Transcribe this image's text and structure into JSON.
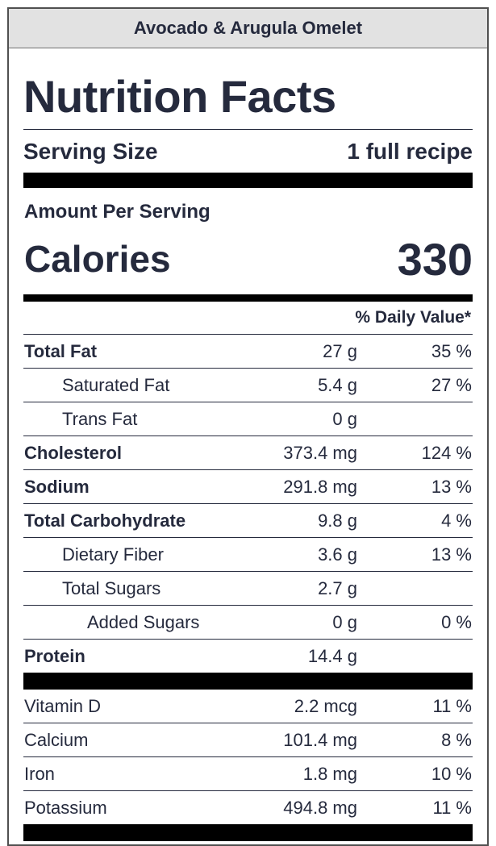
{
  "recipe_title": "Avocado & Arugula Omelet",
  "heading": "Nutrition Facts",
  "serving": {
    "label": "Serving Size",
    "value": "1 full recipe"
  },
  "amount_per_serving": "Amount Per Serving",
  "calories": {
    "label": "Calories",
    "value": "330"
  },
  "daily_value_header": "% Daily Value*",
  "nutrients": [
    {
      "name": "Total Fat",
      "amount": "27 g",
      "percent": "35 %"
    },
    {
      "name": "Saturated Fat",
      "amount": "5.4 g",
      "percent": "27 %"
    },
    {
      "name": "Trans Fat",
      "amount": "0 g",
      "percent": ""
    },
    {
      "name": "Cholesterol",
      "amount": "373.4 mg",
      "percent": "124 %"
    },
    {
      "name": "Sodium",
      "amount": "291.8 mg",
      "percent": "13 %"
    },
    {
      "name": "Total Carbohydrate",
      "amount": "9.8 g",
      "percent": "4 %"
    },
    {
      "name": "Dietary Fiber",
      "amount": "3.6 g",
      "percent": "13 %"
    },
    {
      "name": "Total Sugars",
      "amount": "2.7 g",
      "percent": ""
    },
    {
      "name": "Added Sugars",
      "amount": "0 g",
      "percent": "0 %"
    },
    {
      "name": "Protein",
      "amount": "14.4 g",
      "percent": ""
    }
  ],
  "vitamins": [
    {
      "name": "Vitamin D",
      "amount": "2.2 mcg",
      "percent": "11 %"
    },
    {
      "name": "Calcium",
      "amount": "101.4 mg",
      "percent": "8 %"
    },
    {
      "name": "Iron",
      "amount": "1.8 mg",
      "percent": "10 %"
    },
    {
      "name": "Potassium",
      "amount": "494.8 mg",
      "percent": "11 %"
    }
  ]
}
